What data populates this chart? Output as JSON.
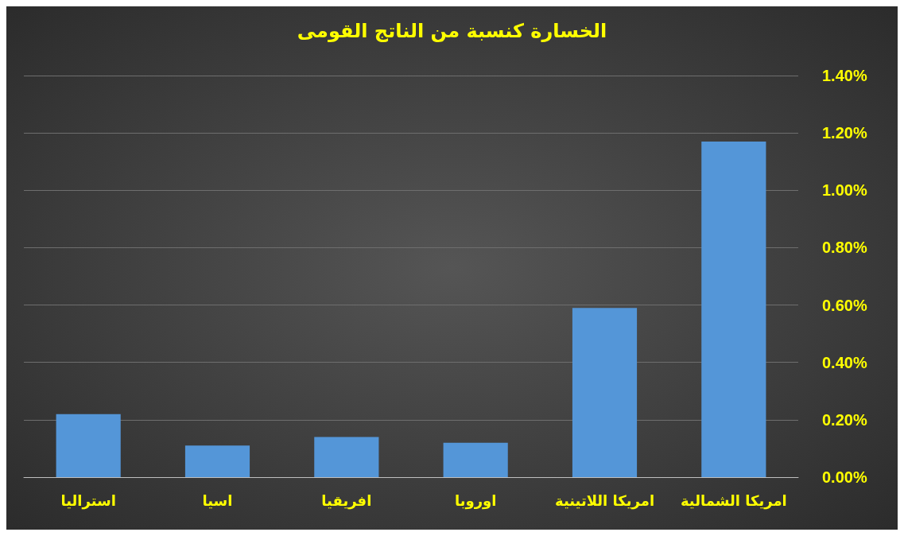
{
  "chart_data": {
    "type": "bar",
    "title": "الخسارة كنسبة من الناتج القومى",
    "categories": [
      "استراليا",
      "اسيا",
      "افريقيا",
      "اوروبا",
      "امريكا اللاتينية",
      "امريكا الشمالية"
    ],
    "values": [
      0.22,
      0.11,
      0.14,
      0.12,
      0.59,
      1.17
    ],
    "color": "#5496d8",
    "ylim": [
      0,
      1.4
    ],
    "yticks": [
      {
        "value": 0,
        "label": "0.00%"
      },
      {
        "value": 0.2,
        "label": "0.20%"
      },
      {
        "value": 0.4,
        "label": "0.40%"
      },
      {
        "value": 0.6,
        "label": "0.60%"
      },
      {
        "value": 0.8,
        "label": "0.80%"
      },
      {
        "value": 1.0,
        "label": "1.00%"
      },
      {
        "value": 1.2,
        "label": "1.20%"
      },
      {
        "value": 1.4,
        "label": "1.40%"
      }
    ],
    "grid": "y"
  }
}
